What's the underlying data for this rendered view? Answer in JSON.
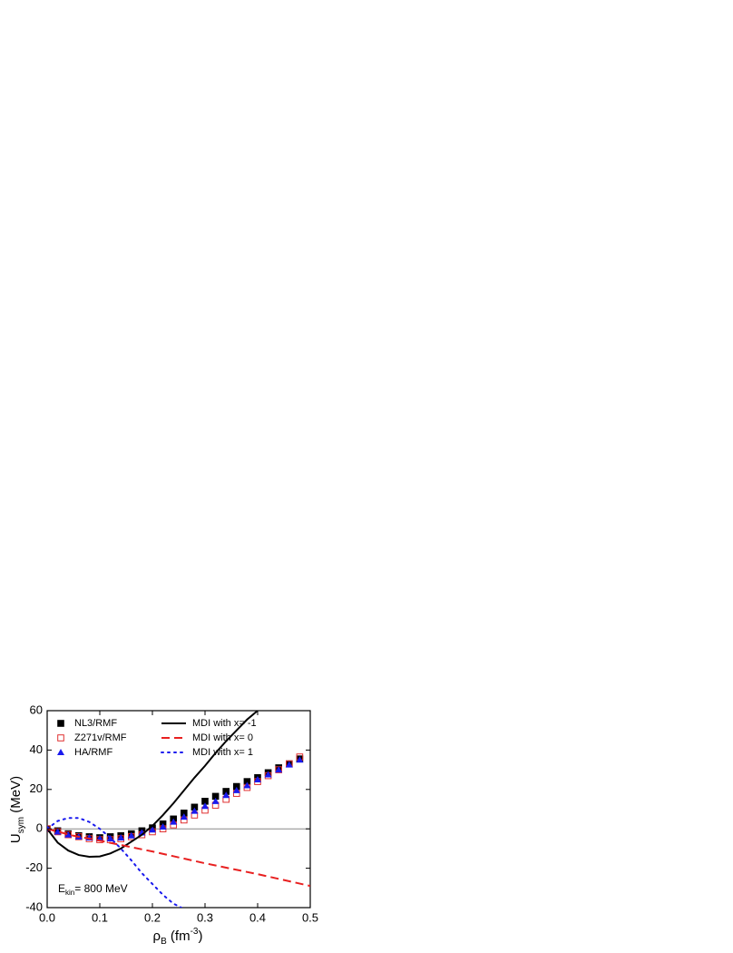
{
  "chart_data": {
    "type": "scatter",
    "xlabel": {
      "symbol": "ρ",
      "sub": "B",
      "unit": "(fm",
      "sup": "-3",
      "close": ")"
    },
    "ylabel": {
      "symbol": "U",
      "sub": "sym",
      "unit": "(MeV)"
    },
    "annotation": {
      "symbol": "E",
      "sub": "kin",
      "text": "= 800 MeV"
    },
    "xlim": [
      0,
      0.5
    ],
    "ylim": [
      -40,
      60
    ],
    "xticks": [
      {
        "value": 0,
        "label": "0.0"
      },
      0.1,
      0.2,
      0.3,
      0.4,
      0.5
    ],
    "yticks": [
      -40,
      -20,
      0,
      20,
      40,
      60
    ],
    "hline": 0,
    "series": [
      {
        "name": "NL3/RMF",
        "color": "#000000",
        "style": "square",
        "x": [
          0,
          0.02,
          0.04,
          0.06,
          0.08,
          0.1,
          0.12,
          0.14,
          0.16,
          0.18,
          0.2,
          0.22,
          0.24,
          0.26,
          0.28,
          0.3,
          0.32,
          0.34,
          0.36,
          0.38,
          0.4,
          0.42,
          0.44,
          0.46,
          0.48
        ],
        "values": [
          0,
          -1,
          -2.5,
          -3.5,
          -4,
          -4.5,
          -4,
          -3.5,
          -2.5,
          -1,
          0.5,
          2.5,
          5,
          8,
          11,
          14,
          16.5,
          19,
          21.5,
          24,
          26,
          28.5,
          31,
          33,
          35.5
        ]
      },
      {
        "name": "Z271v/RMF",
        "color": "#e03030",
        "style": "open-square",
        "x": [
          0,
          0.02,
          0.04,
          0.06,
          0.08,
          0.1,
          0.12,
          0.14,
          0.16,
          0.18,
          0.2,
          0.22,
          0.24,
          0.26,
          0.28,
          0.3,
          0.32,
          0.34,
          0.36,
          0.38,
          0.4,
          0.42,
          0.44,
          0.46,
          0.48
        ],
        "values": [
          0,
          -1.5,
          -3,
          -4,
          -5,
          -5.5,
          -5.5,
          -5,
          -4,
          -3,
          -1.5,
          0,
          2,
          4.5,
          7,
          9.5,
          12,
          15,
          18,
          21,
          24,
          27,
          30,
          33,
          36.5
        ]
      },
      {
        "name": "HA/RMF",
        "color": "#1a1aee",
        "style": "triangle",
        "x": [
          0,
          0.02,
          0.04,
          0.06,
          0.08,
          0.1,
          0.12,
          0.14,
          0.16,
          0.18,
          0.2,
          0.22,
          0.24,
          0.26,
          0.28,
          0.3,
          0.32,
          0.34,
          0.36,
          0.38,
          0.4,
          0.42,
          0.44,
          0.46,
          0.48
        ],
        "values": [
          0,
          -1.5,
          -3,
          -4,
          -4.5,
          -5,
          -5,
          -4.5,
          -3.5,
          -2,
          -0.5,
          1,
          3.5,
          6,
          9,
          11.5,
          14,
          17,
          19.5,
          22,
          25,
          27.5,
          30,
          32.5,
          35
        ]
      },
      {
        "name": "MDI with x= -1",
        "color": "#000000",
        "style": "solid",
        "x": [
          0,
          0.02,
          0.04,
          0.06,
          0.08,
          0.1,
          0.12,
          0.14,
          0.16,
          0.18,
          0.2,
          0.22,
          0.24,
          0.26,
          0.28,
          0.3,
          0.32,
          0.34,
          0.36,
          0.38,
          0.4
        ],
        "values": [
          0,
          -7,
          -11,
          -13.3,
          -14.2,
          -14,
          -12.5,
          -10,
          -6.5,
          -3,
          1.5,
          7,
          13,
          19.5,
          26,
          32,
          38.5,
          44.5,
          50,
          55.5,
          60
        ]
      },
      {
        "name": "MDI with x=  0",
        "color": "#e82020",
        "style": "dashed",
        "x": [
          0,
          0.05,
          0.1,
          0.2,
          0.3,
          0.4,
          0.5
        ],
        "values": [
          0,
          -3.5,
          -6,
          -11.5,
          -17.5,
          -23,
          -29
        ]
      },
      {
        "name": "MDI with x=  1",
        "color": "#1a1aee",
        "style": "dotted",
        "x": [
          0,
          0.02,
          0.04,
          0.06,
          0.08,
          0.1,
          0.12,
          0.14,
          0.16,
          0.18,
          0.2,
          0.22,
          0.24,
          0.255
        ],
        "values": [
          0,
          4,
          5.5,
          5.5,
          3.5,
          0,
          -4.5,
          -10,
          -16,
          -22.5,
          -28,
          -33.5,
          -38,
          -40
        ]
      }
    ]
  }
}
